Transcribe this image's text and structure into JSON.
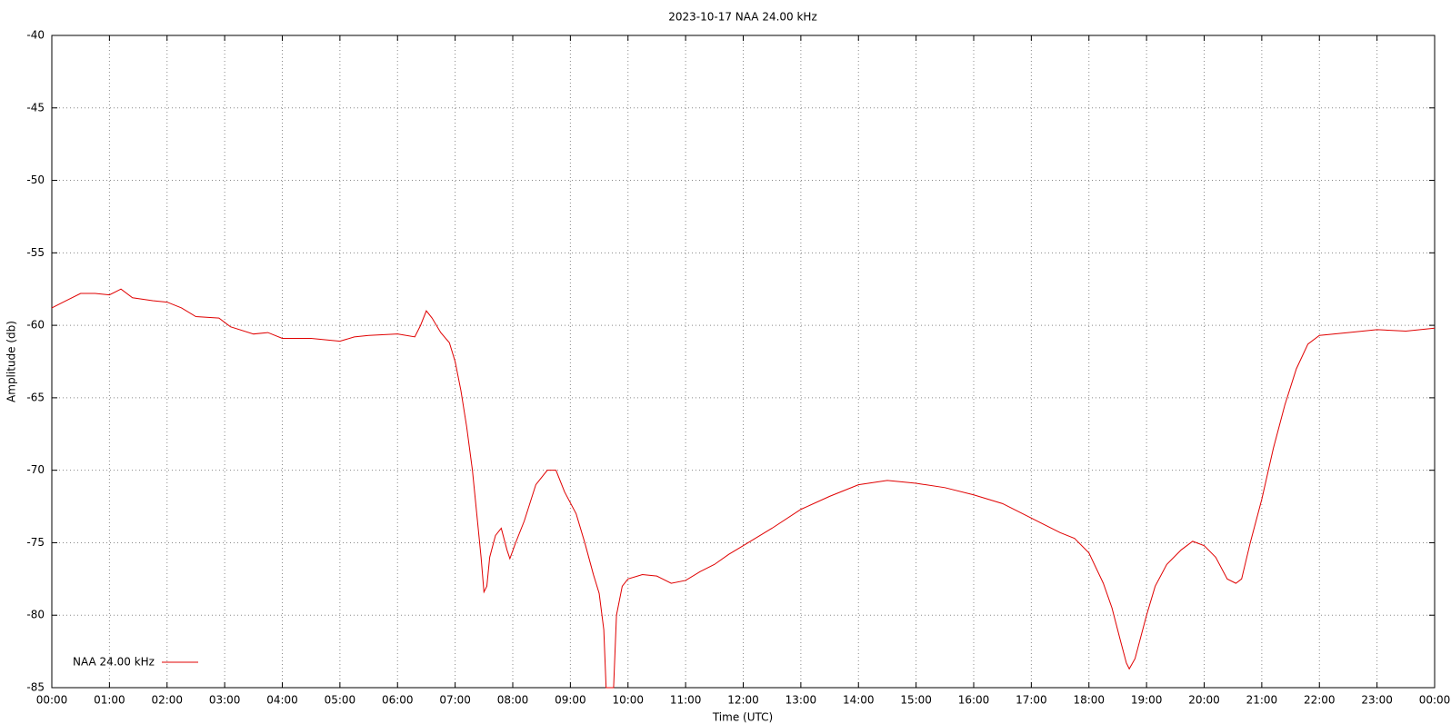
{
  "chart_data": {
    "type": "line",
    "title": "2023-10-17 NAA 24.00 kHz",
    "x_label": "Time (UTC)",
    "y_label": "Amplitude (db)",
    "xlim": [
      0,
      24
    ],
    "ylim": [
      -85,
      -40
    ],
    "xticks": [
      {
        "value": 0,
        "label": "00:00"
      },
      {
        "value": 1,
        "label": "01:00"
      },
      {
        "value": 2,
        "label": "02:00"
      },
      {
        "value": 3,
        "label": "03:00"
      },
      {
        "value": 4,
        "label": "04:00"
      },
      {
        "value": 5,
        "label": "05:00"
      },
      {
        "value": 6,
        "label": "06:00"
      },
      {
        "value": 7,
        "label": "07:00"
      },
      {
        "value": 8,
        "label": "08:00"
      },
      {
        "value": 9,
        "label": "09:00"
      },
      {
        "value": 10,
        "label": "10:00"
      },
      {
        "value": 11,
        "label": "11:00"
      },
      {
        "value": 12,
        "label": "12:00"
      },
      {
        "value": 13,
        "label": "13:00"
      },
      {
        "value": 14,
        "label": "14:00"
      },
      {
        "value": 15,
        "label": "15:00"
      },
      {
        "value": 16,
        "label": "16:00"
      },
      {
        "value": 17,
        "label": "17:00"
      },
      {
        "value": 18,
        "label": "18:00"
      },
      {
        "value": 19,
        "label": "19:00"
      },
      {
        "value": 20,
        "label": "20:00"
      },
      {
        "value": 21,
        "label": "21:00"
      },
      {
        "value": 22,
        "label": "22:00"
      },
      {
        "value": 23,
        "label": "23:00"
      },
      {
        "value": 24,
        "label": "00:00"
      }
    ],
    "yticks": [
      -40,
      -45,
      -50,
      -55,
      -60,
      -65,
      -70,
      -75,
      -80,
      -85
    ],
    "grid": true,
    "legend": "bottom-left",
    "x": [
      0,
      0.25,
      0.5,
      0.75,
      1.0,
      1.2,
      1.4,
      1.75,
      2.0,
      2.25,
      2.5,
      2.9,
      3.1,
      3.5,
      3.75,
      4.0,
      4.5,
      5.0,
      5.25,
      5.5,
      6.0,
      6.3,
      6.4,
      6.5,
      6.6,
      6.75,
      6.9,
      7.0,
      7.1,
      7.2,
      7.3,
      7.35,
      7.45,
      7.5,
      7.55,
      7.6,
      7.7,
      7.8,
      7.9,
      7.95,
      8.05,
      8.2,
      8.4,
      8.6,
      8.75,
      8.9,
      9.1,
      9.25,
      9.4,
      9.5,
      9.58,
      9.62,
      9.75,
      9.8,
      9.9,
      10.0,
      10.25,
      10.5,
      10.75,
      11.0,
      11.25,
      11.5,
      11.75,
      12.0,
      12.5,
      13.0,
      13.5,
      14.0,
      14.5,
      15.0,
      15.5,
      16.0,
      16.5,
      17.0,
      17.5,
      17.75,
      18.0,
      18.25,
      18.4,
      18.55,
      18.65,
      18.7,
      18.8,
      18.9,
      19.0,
      19.15,
      19.35,
      19.6,
      19.8,
      20.0,
      20.2,
      20.4,
      20.55,
      20.65,
      20.8,
      21.0,
      21.2,
      21.4,
      21.6,
      21.8,
      22.0,
      22.5,
      23.0,
      23.5,
      24.0
    ],
    "series": [
      {
        "name": "NAA 24.00 kHz",
        "color": "#e00000",
        "values": [
          -58.8,
          -58.3,
          -57.8,
          -57.8,
          -57.9,
          -57.5,
          -58.1,
          -58.3,
          -58.4,
          -58.8,
          -59.4,
          -59.5,
          -60.1,
          -60.6,
          -60.5,
          -60.9,
          -60.9,
          -61.1,
          -60.8,
          -60.7,
          -60.6,
          -60.8,
          -60.0,
          -59.0,
          -59.5,
          -60.5,
          -61.2,
          -62.5,
          -64.5,
          -67,
          -70,
          -72,
          -76,
          -78.4,
          -78,
          -76,
          -74.5,
          -74,
          -75.5,
          -76.1,
          -75,
          -73.5,
          -71,
          -70,
          -70,
          -71.5,
          -73,
          -75,
          -77.2,
          -78.5,
          -81,
          -85,
          -85,
          -80,
          -78,
          -77.5,
          -77.2,
          -77.3,
          -77.8,
          -77.6,
          -77,
          -76.5,
          -75.8,
          -75.2,
          -74,
          -72.7,
          -71.8,
          -71,
          -70.7,
          -70.9,
          -71.2,
          -71.7,
          -72.3,
          -73.3,
          -74.3,
          -74.7,
          -75.7,
          -77.8,
          -79.5,
          -81.8,
          -83.3,
          -83.7,
          -83,
          -81.5,
          -80,
          -78,
          -76.5,
          -75.5,
          -74.9,
          -75.2,
          -76,
          -77.5,
          -77.8,
          -77.5,
          -75,
          -72,
          -68.5,
          -65.5,
          -63,
          -61.3,
          -60.7,
          -60.5,
          -60.3,
          -60.4,
          -60.2
        ]
      }
    ]
  }
}
